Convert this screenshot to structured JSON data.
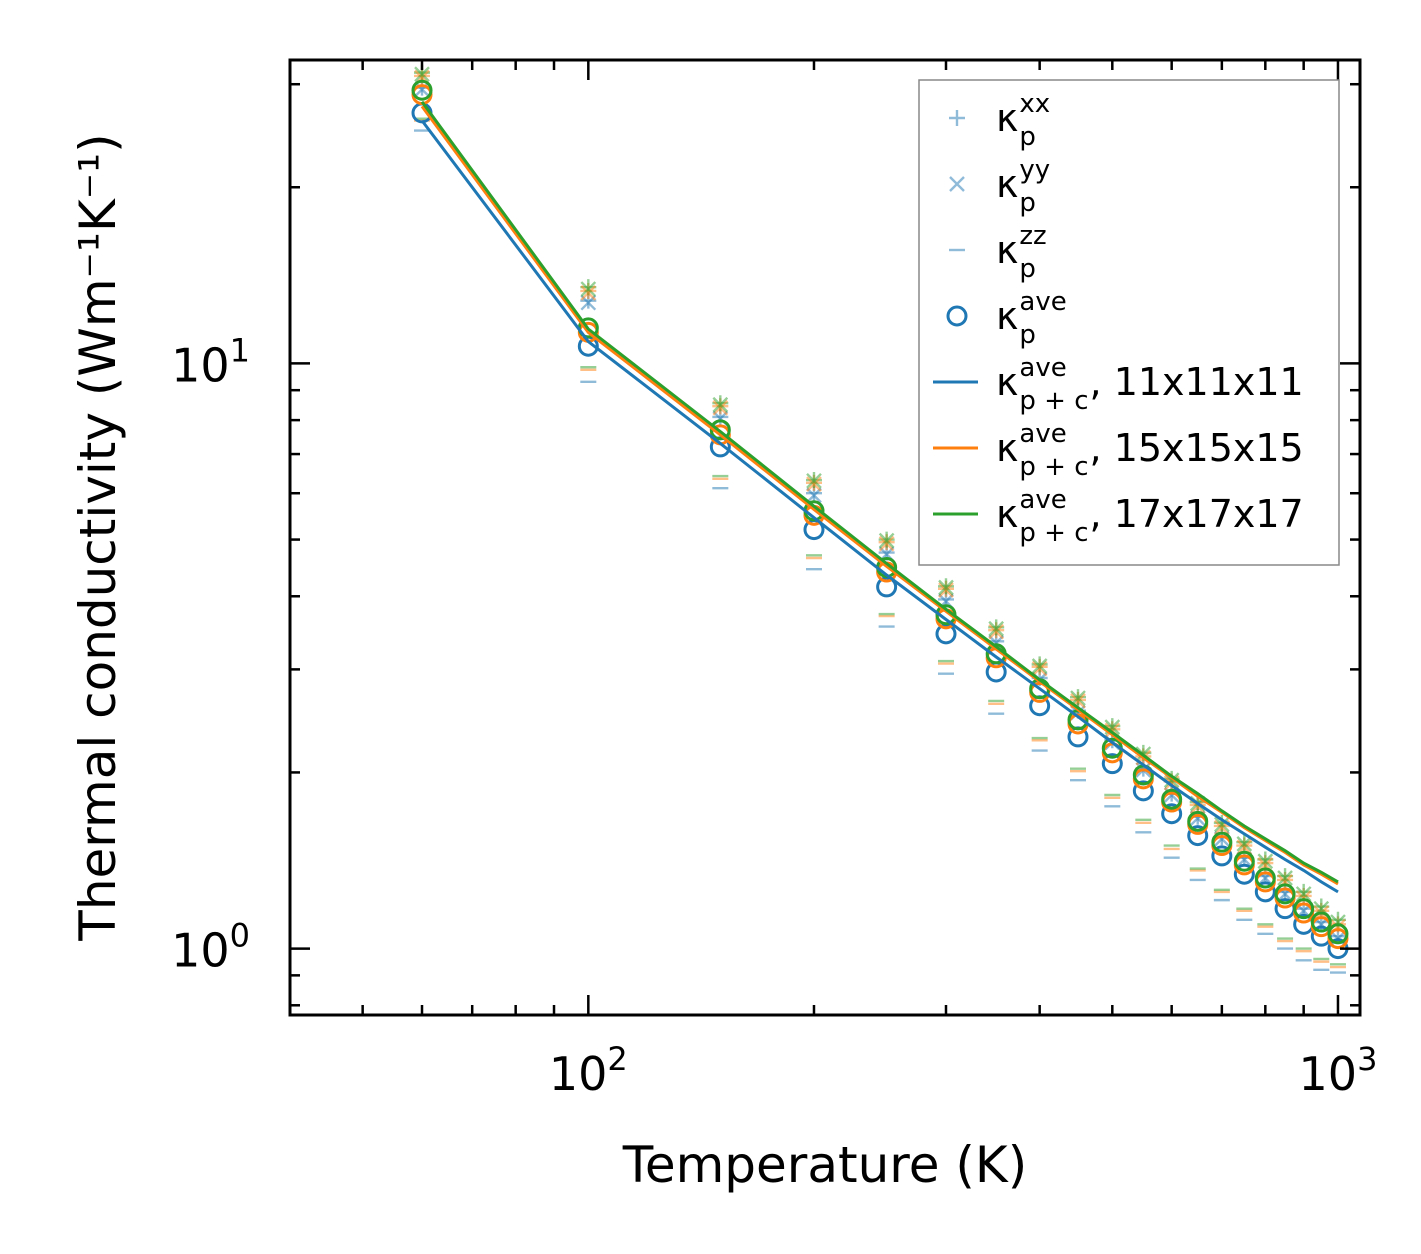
{
  "chart_data": {
    "type": "line",
    "scale": {
      "x": "log",
      "y": "log"
    },
    "xlabel": "Temperature (K)",
    "ylabel": "Thermal conductivity (Wm⁻¹K⁻¹)",
    "xlim": [
      40,
      1070
    ],
    "ylim": [
      0.77,
      33
    ],
    "x_major_ticks": [
      {
        "value": 100,
        "base": "10",
        "exp": "2"
      },
      {
        "value": 1000,
        "base": "10",
        "exp": "3"
      }
    ],
    "y_major_ticks": [
      {
        "value": 1,
        "base": "10",
        "exp": "0"
      },
      {
        "value": 10,
        "base": "10",
        "exp": "1"
      }
    ],
    "x": [
      60,
      100,
      150,
      200,
      250,
      300,
      350,
      400,
      450,
      500,
      550,
      600,
      650,
      700,
      750,
      800,
      850,
      900,
      950,
      1000
    ],
    "scatter_series": [
      {
        "name": "κ_p^xx",
        "base": "κ",
        "sub": "p",
        "sup": "xx",
        "marker": "plus",
        "color": "#1f77b4",
        "opacity": 0.5,
        "variants": [
          {
            "color": "#1f77b4",
            "values": [
              29.6,
              12.8,
              8.1,
              6.0,
              4.75,
              3.95,
              3.35,
              2.9,
              2.55,
              2.27,
              2.03,
              1.84,
              1.68,
              1.55,
              1.43,
              1.33,
              1.25,
              1.17,
              1.11,
              1.05
            ]
          },
          {
            "color": "#ff7f0e",
            "values": [
              31.0,
              13.3,
              8.45,
              6.25,
              4.95,
              4.12,
              3.5,
              3.03,
              2.66,
              2.37,
              2.13,
              1.93,
              1.76,
              1.62,
              1.5,
              1.4,
              1.31,
              1.23,
              1.16,
              1.1
            ]
          },
          {
            "color": "#2ca02c",
            "values": [
              31.4,
              13.5,
              8.55,
              6.32,
              5.0,
              4.16,
              3.54,
              3.06,
              2.69,
              2.4,
              2.16,
              1.95,
              1.78,
              1.64,
              1.52,
              1.42,
              1.33,
              1.25,
              1.18,
              1.12
            ]
          }
        ]
      },
      {
        "name": "κ_p^yy",
        "base": "κ",
        "sub": "p",
        "sup": "yy",
        "marker": "x",
        "color": "#1f77b4",
        "opacity": 0.5,
        "variants": [
          {
            "color": "#1f77b4",
            "values": [
              29.4,
              12.7,
              8.05,
              5.95,
              4.72,
              3.92,
              3.33,
              2.88,
              2.53,
              2.25,
              2.02,
              1.83,
              1.67,
              1.54,
              1.42,
              1.32,
              1.24,
              1.16,
              1.1,
              1.04
            ]
          },
          {
            "color": "#ff7f0e",
            "values": [
              30.8,
              13.2,
              8.4,
              6.22,
              4.92,
              4.1,
              3.48,
              3.01,
              2.65,
              2.36,
              2.12,
              1.92,
              1.75,
              1.61,
              1.49,
              1.39,
              1.3,
              1.22,
              1.15,
              1.09
            ]
          },
          {
            "color": "#2ca02c",
            "values": [
              31.2,
              13.4,
              8.5,
              6.3,
              4.98,
              4.14,
              3.52,
              3.04,
              2.68,
              2.39,
              2.15,
              1.94,
              1.77,
              1.63,
              1.51,
              1.41,
              1.32,
              1.24,
              1.17,
              1.11
            ]
          }
        ]
      },
      {
        "name": "κ_p^zz",
        "base": "κ",
        "sub": "p",
        "sup": "zz",
        "marker": "hline",
        "color": "#1f77b4",
        "opacity": 0.5,
        "variants": [
          {
            "color": "#1f77b4",
            "values": [
              25.0,
              9.3,
              6.12,
              4.45,
              3.55,
              2.95,
              2.52,
              2.18,
              1.94,
              1.75,
              1.58,
              1.43,
              1.31,
              1.21,
              1.12,
              1.06,
              1.0,
              0.955,
              0.92,
              0.91
            ]
          },
          {
            "color": "#ff7f0e",
            "values": [
              26.0,
              9.75,
              6.35,
              4.65,
              3.7,
              3.07,
              2.62,
              2.27,
              2.01,
              1.81,
              1.64,
              1.48,
              1.36,
              1.25,
              1.16,
              1.09,
              1.03,
              0.99,
              0.95,
              0.93
            ]
          },
          {
            "color": "#2ca02c",
            "values": [
              26.2,
              9.85,
              6.42,
              4.7,
              3.73,
              3.1,
              2.65,
              2.29,
              2.03,
              1.83,
              1.66,
              1.5,
              1.37,
              1.26,
              1.17,
              1.1,
              1.04,
              1.0,
              0.96,
              0.94
            ]
          }
        ]
      },
      {
        "name": "κ_p^ave",
        "base": "κ",
        "sub": "p",
        "sup": "ave",
        "marker": "circle",
        "color": "#1f77b4",
        "opacity": 1,
        "variants": [
          {
            "color": "#1f77b4",
            "values": [
              26.8,
              10.7,
              7.2,
              5.2,
              4.15,
              3.45,
              2.97,
              2.6,
              2.3,
              2.07,
              1.86,
              1.7,
              1.56,
              1.44,
              1.34,
              1.25,
              1.17,
              1.1,
              1.05,
              1.0
            ]
          },
          {
            "color": "#ff7f0e",
            "values": [
              28.8,
              11.3,
              7.55,
              5.5,
              4.4,
              3.66,
              3.14,
              2.74,
              2.42,
              2.16,
              1.95,
              1.78,
              1.63,
              1.5,
              1.39,
              1.3,
              1.22,
              1.15,
              1.09,
              1.04
            ]
          },
          {
            "color": "#2ca02c",
            "values": [
              29.3,
              11.5,
              7.7,
              5.6,
              4.48,
              3.72,
              3.19,
              2.78,
              2.46,
              2.2,
              1.98,
              1.8,
              1.65,
              1.52,
              1.41,
              1.32,
              1.24,
              1.17,
              1.11,
              1.06
            ]
          }
        ]
      }
    ],
    "line_series": [
      {
        "name": "κ_p+c^ave, 11x11x11",
        "base": "κ",
        "sub": "p + c",
        "sup": "ave",
        "suffix": ", 11x11x11",
        "color": "#1f77b4",
        "values": [
          26.0,
          10.9,
          7.3,
          5.45,
          4.35,
          3.65,
          3.15,
          2.78,
          2.49,
          2.25,
          2.06,
          1.9,
          1.77,
          1.66,
          1.57,
          1.49,
          1.42,
          1.36,
          1.3,
          1.25
        ]
      },
      {
        "name": "κ_p+c^ave, 15x15x15",
        "base": "κ",
        "sub": "p + c",
        "sup": "ave",
        "suffix": ", 15x15x15",
        "color": "#ff7f0e",
        "values": [
          27.5,
          11.3,
          7.55,
          5.63,
          4.5,
          3.77,
          3.25,
          2.86,
          2.56,
          2.32,
          2.12,
          1.96,
          1.82,
          1.71,
          1.61,
          1.53,
          1.46,
          1.39,
          1.34,
          1.29
        ]
      },
      {
        "name": "κ_p+c^ave, 17x17x17",
        "base": "κ",
        "sub": "p + c",
        "sup": "ave",
        "suffix": ", 17x17x17",
        "color": "#2ca02c",
        "values": [
          28.0,
          11.45,
          7.65,
          5.7,
          4.55,
          3.8,
          3.28,
          2.88,
          2.58,
          2.34,
          2.14,
          1.97,
          1.84,
          1.72,
          1.62,
          1.54,
          1.47,
          1.4,
          1.35,
          1.3
        ]
      }
    ],
    "legend": "upper right",
    "grid": false
  }
}
